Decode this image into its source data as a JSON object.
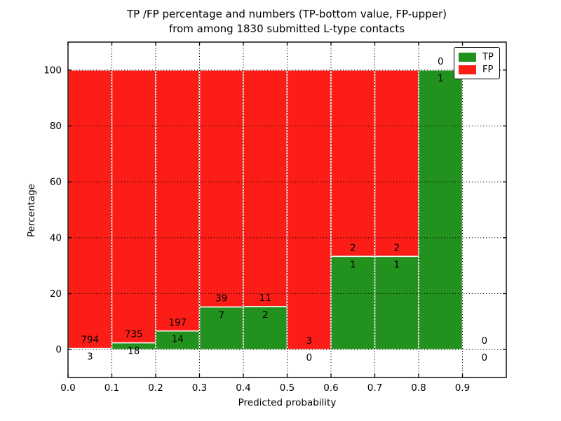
{
  "figure": {
    "title_line1": "TP /FP percentage and numbers (TP-bottom value, FP-upper)",
    "title_line2": "from among 1830 submitted L-type contacts",
    "xlabel": "Predicted probability",
    "ylabel": "Percentage",
    "total_submitted_contacts": 1830
  },
  "legend": {
    "position": "upper right",
    "items": [
      {
        "label": "TP",
        "color": "#22911e"
      },
      {
        "label": "FP",
        "color": "#fc1d17"
      }
    ]
  },
  "chart_data": {
    "type": "bar",
    "stacked": true,
    "title": "TP /FP percentage and numbers (TP-bottom value, FP-upper) from among 1830 submitted L-type contacts",
    "xlabel": "Predicted probability",
    "ylabel": "Percentage",
    "xlim": [
      0.0,
      1.0
    ],
    "ylim": [
      -10,
      110
    ],
    "xticks": [
      "0.0",
      "0.1",
      "0.2",
      "0.3",
      "0.4",
      "0.5",
      "0.6",
      "0.7",
      "0.8",
      "0.9"
    ],
    "yticks": [
      0,
      20,
      40,
      60,
      80,
      100
    ],
    "grid": "dotted-black-both-axes",
    "legend_position": "upper right",
    "series": [
      {
        "name": "TP",
        "color": "#22911e"
      },
      {
        "name": "FP",
        "color": "#fc1d17"
      }
    ],
    "bins": [
      {
        "x0": 0.0,
        "x1": 0.1,
        "tp": 3,
        "fp": 794,
        "tp_pct": 0.38,
        "fp_pct": 99.62
      },
      {
        "x0": 0.1,
        "x1": 0.2,
        "tp": 18,
        "fp": 735,
        "tp_pct": 2.39,
        "fp_pct": 97.61
      },
      {
        "x0": 0.2,
        "x1": 0.3,
        "tp": 14,
        "fp": 197,
        "tp_pct": 6.64,
        "fp_pct": 93.36
      },
      {
        "x0": 0.3,
        "x1": 0.4,
        "tp": 7,
        "fp": 39,
        "tp_pct": 15.22,
        "fp_pct": 84.78
      },
      {
        "x0": 0.4,
        "x1": 0.5,
        "tp": 2,
        "fp": 11,
        "tp_pct": 15.38,
        "fp_pct": 84.62
      },
      {
        "x0": 0.5,
        "x1": 0.6,
        "tp": 0,
        "fp": 3,
        "tp_pct": 0.0,
        "fp_pct": 100.0
      },
      {
        "x0": 0.6,
        "x1": 0.7,
        "tp": 1,
        "fp": 2,
        "tp_pct": 33.33,
        "fp_pct": 66.67
      },
      {
        "x0": 0.7,
        "x1": 0.8,
        "tp": 1,
        "fp": 2,
        "tp_pct": 33.33,
        "fp_pct": 66.67
      },
      {
        "x0": 0.8,
        "x1": 0.9,
        "tp": 1,
        "fp": 0,
        "tp_pct": 100.0,
        "fp_pct": 0.0
      },
      {
        "x0": 0.9,
        "x1": 1.0,
        "tp": 0,
        "fp": 0,
        "tp_pct": null,
        "fp_pct": null
      }
    ],
    "colors": {
      "tp": "#22911e",
      "fp": "#fc1d17",
      "bar_edge": "#ffffff",
      "grid": "#000000",
      "axes": "#000000",
      "background": "#ffffff"
    }
  }
}
